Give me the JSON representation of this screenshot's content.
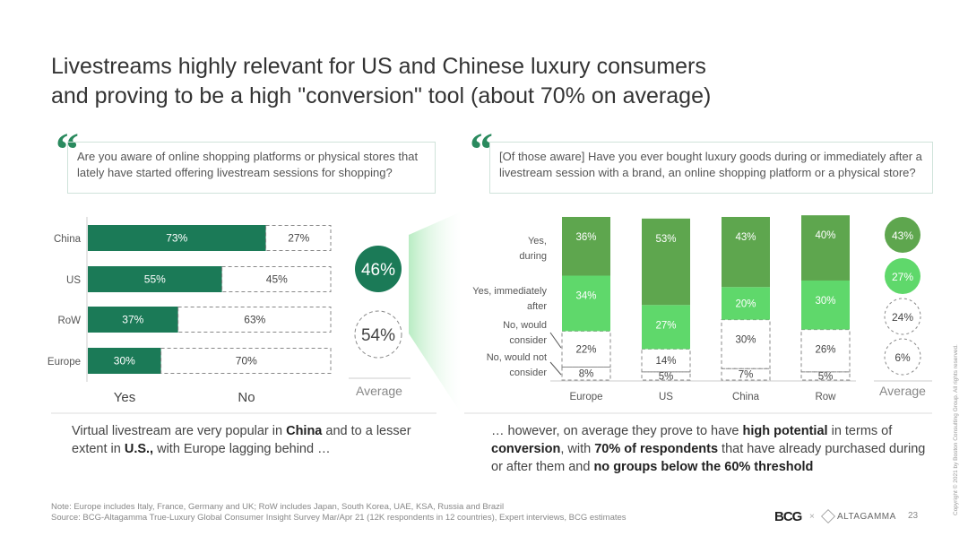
{
  "title": {
    "line1": "Livestreams highly relevant for US and Chinese luxury consumers",
    "line2": "and proving to be a high \"conversion\" tool (about 70% on average)"
  },
  "quote_left": "Are you aware of online shopping platforms or physical stores that lately have started offering livestream sessions for shopping?",
  "quote_right": "[Of those aware] Have you ever bought luxury goods during or immediately after a livestream session with a brand, an online shopping platform or a physical store?",
  "quote_mark": "“",
  "caption_left": {
    "p1": "Virtual livestream are very popular in ",
    "b1": "China",
    "p2": " and to a lesser extent in ",
    "b2": "U.S.,",
    "p3": " with Europe lagging behind …"
  },
  "caption_right": {
    "p1": "… however, on average they prove to have ",
    "b1": "high potential",
    "p2": " in terms of ",
    "b2": "conversion",
    "p3": ", with ",
    "b3": "70% of respondents",
    "p4": " that have already purchased during or after them and ",
    "b4": "no groups below the 60% threshold"
  },
  "note": "Note: Europe includes Italy, France, Germany and UK; RoW includes Japan, South Korea, UAE, KSA, Russia and Brazil",
  "source": "Source: BCG-Altagamma True-Luxury Global Consumer Insight Survey Mar/Apr 21 (12K respondents in 12 countries), Expert interviews, BCG estimates",
  "page_number": "23",
  "logo_bcg": "BCG",
  "logo_sep": "×",
  "logo_altagamma": "ALTAGAMMA",
  "copyright": "Copyright © 2021 by Boston Consulting Group. All rights reserved.",
  "colors": {
    "dark_green": "#1b7a57",
    "mid_green": "#5ea64e",
    "light_green": "#5fd86b",
    "dash_gray": "#888888"
  },
  "chart_data": [
    {
      "type": "bar",
      "orientation": "horizontal",
      "stacked": true,
      "categories": [
        "China",
        "US",
        "RoW",
        "Europe"
      ],
      "series": [
        {
          "name": "Yes",
          "values": [
            73,
            55,
            37,
            30
          ],
          "labels": [
            "73%",
            "55%",
            "37%",
            "30%"
          ]
        },
        {
          "name": "No",
          "values": [
            27,
            45,
            63,
            70
          ],
          "labels": [
            "27%",
            "45%",
            "63%",
            "70%"
          ]
        }
      ],
      "average": {
        "label": "Average",
        "yes": "46%",
        "no": "54%"
      }
    },
    {
      "type": "bar",
      "orientation": "vertical",
      "stacked": true,
      "categories": [
        "Europe",
        "US",
        "China",
        "Row"
      ],
      "series": [
        {
          "name": "No, would not consider",
          "values": [
            8,
            5,
            7,
            5
          ],
          "labels": [
            "8%",
            "5%",
            "7%",
            "5%"
          ]
        },
        {
          "name": "No, would consider",
          "values": [
            22,
            14,
            30,
            26
          ],
          "labels": [
            "22%",
            "14%",
            "30%",
            "26%"
          ]
        },
        {
          "name": "Yes, immediately after",
          "values": [
            34,
            27,
            20,
            30
          ],
          "labels": [
            "34%",
            "27%",
            "20%",
            "30%"
          ]
        },
        {
          "name": "Yes, during",
          "values": [
            36,
            53,
            43,
            40
          ],
          "labels": [
            "36%",
            "53%",
            "43%",
            "40%"
          ]
        }
      ],
      "series_labels": {
        "yes_during": [
          "Yes,",
          "during"
        ],
        "yes_after": [
          "Yes, immediately",
          "after"
        ],
        "no_consider": [
          "No, would",
          "consider"
        ],
        "no_not_consider": [
          "No, would not",
          "consider"
        ]
      },
      "average": {
        "label": "Average",
        "values": [
          "43%",
          "27%",
          "24%",
          "6%"
        ]
      }
    }
  ]
}
